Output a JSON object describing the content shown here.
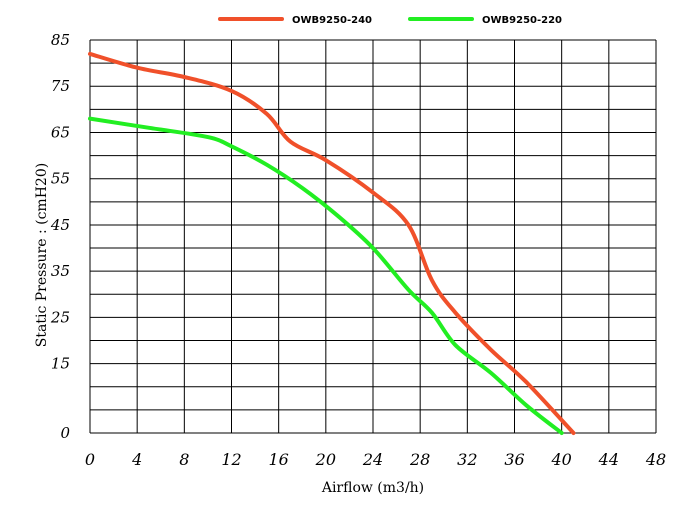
{
  "chart_data": {
    "type": "line",
    "title": "",
    "xlabel": "Airflow (m3/h)",
    "ylabel": "Static Pressure : (cmH20)",
    "xlim": [
      0,
      48
    ],
    "ylim": [
      0,
      85
    ],
    "x_ticks": [
      "0",
      "4",
      "8",
      "12",
      "16",
      "20",
      "24",
      "28",
      "32",
      "36",
      "40",
      "44",
      "48"
    ],
    "y_ticks": [
      "85",
      "75",
      "65",
      "55",
      "45",
      "35",
      "25",
      "15",
      "0"
    ],
    "grid": true,
    "legend_position": "top",
    "series": [
      {
        "name": "OWB9250-240",
        "color": "#f0502a",
        "x": [
          0,
          4,
          8,
          12,
          15,
          17,
          20,
          24,
          27,
          29,
          31,
          34,
          37,
          41
        ],
        "y": [
          82,
          79,
          77,
          74,
          69,
          63,
          59,
          52,
          45,
          33,
          26,
          18,
          11,
          0
        ]
      },
      {
        "name": "OWB9250-220",
        "color": "#22ee22",
        "x": [
          0,
          5,
          10,
          12,
          15,
          18,
          21,
          24,
          27,
          29,
          31,
          34,
          37,
          40
        ],
        "y": [
          68,
          66,
          64,
          62,
          58,
          53,
          47,
          40,
          31,
          26,
          19,
          13,
          6,
          0
        ]
      }
    ]
  }
}
